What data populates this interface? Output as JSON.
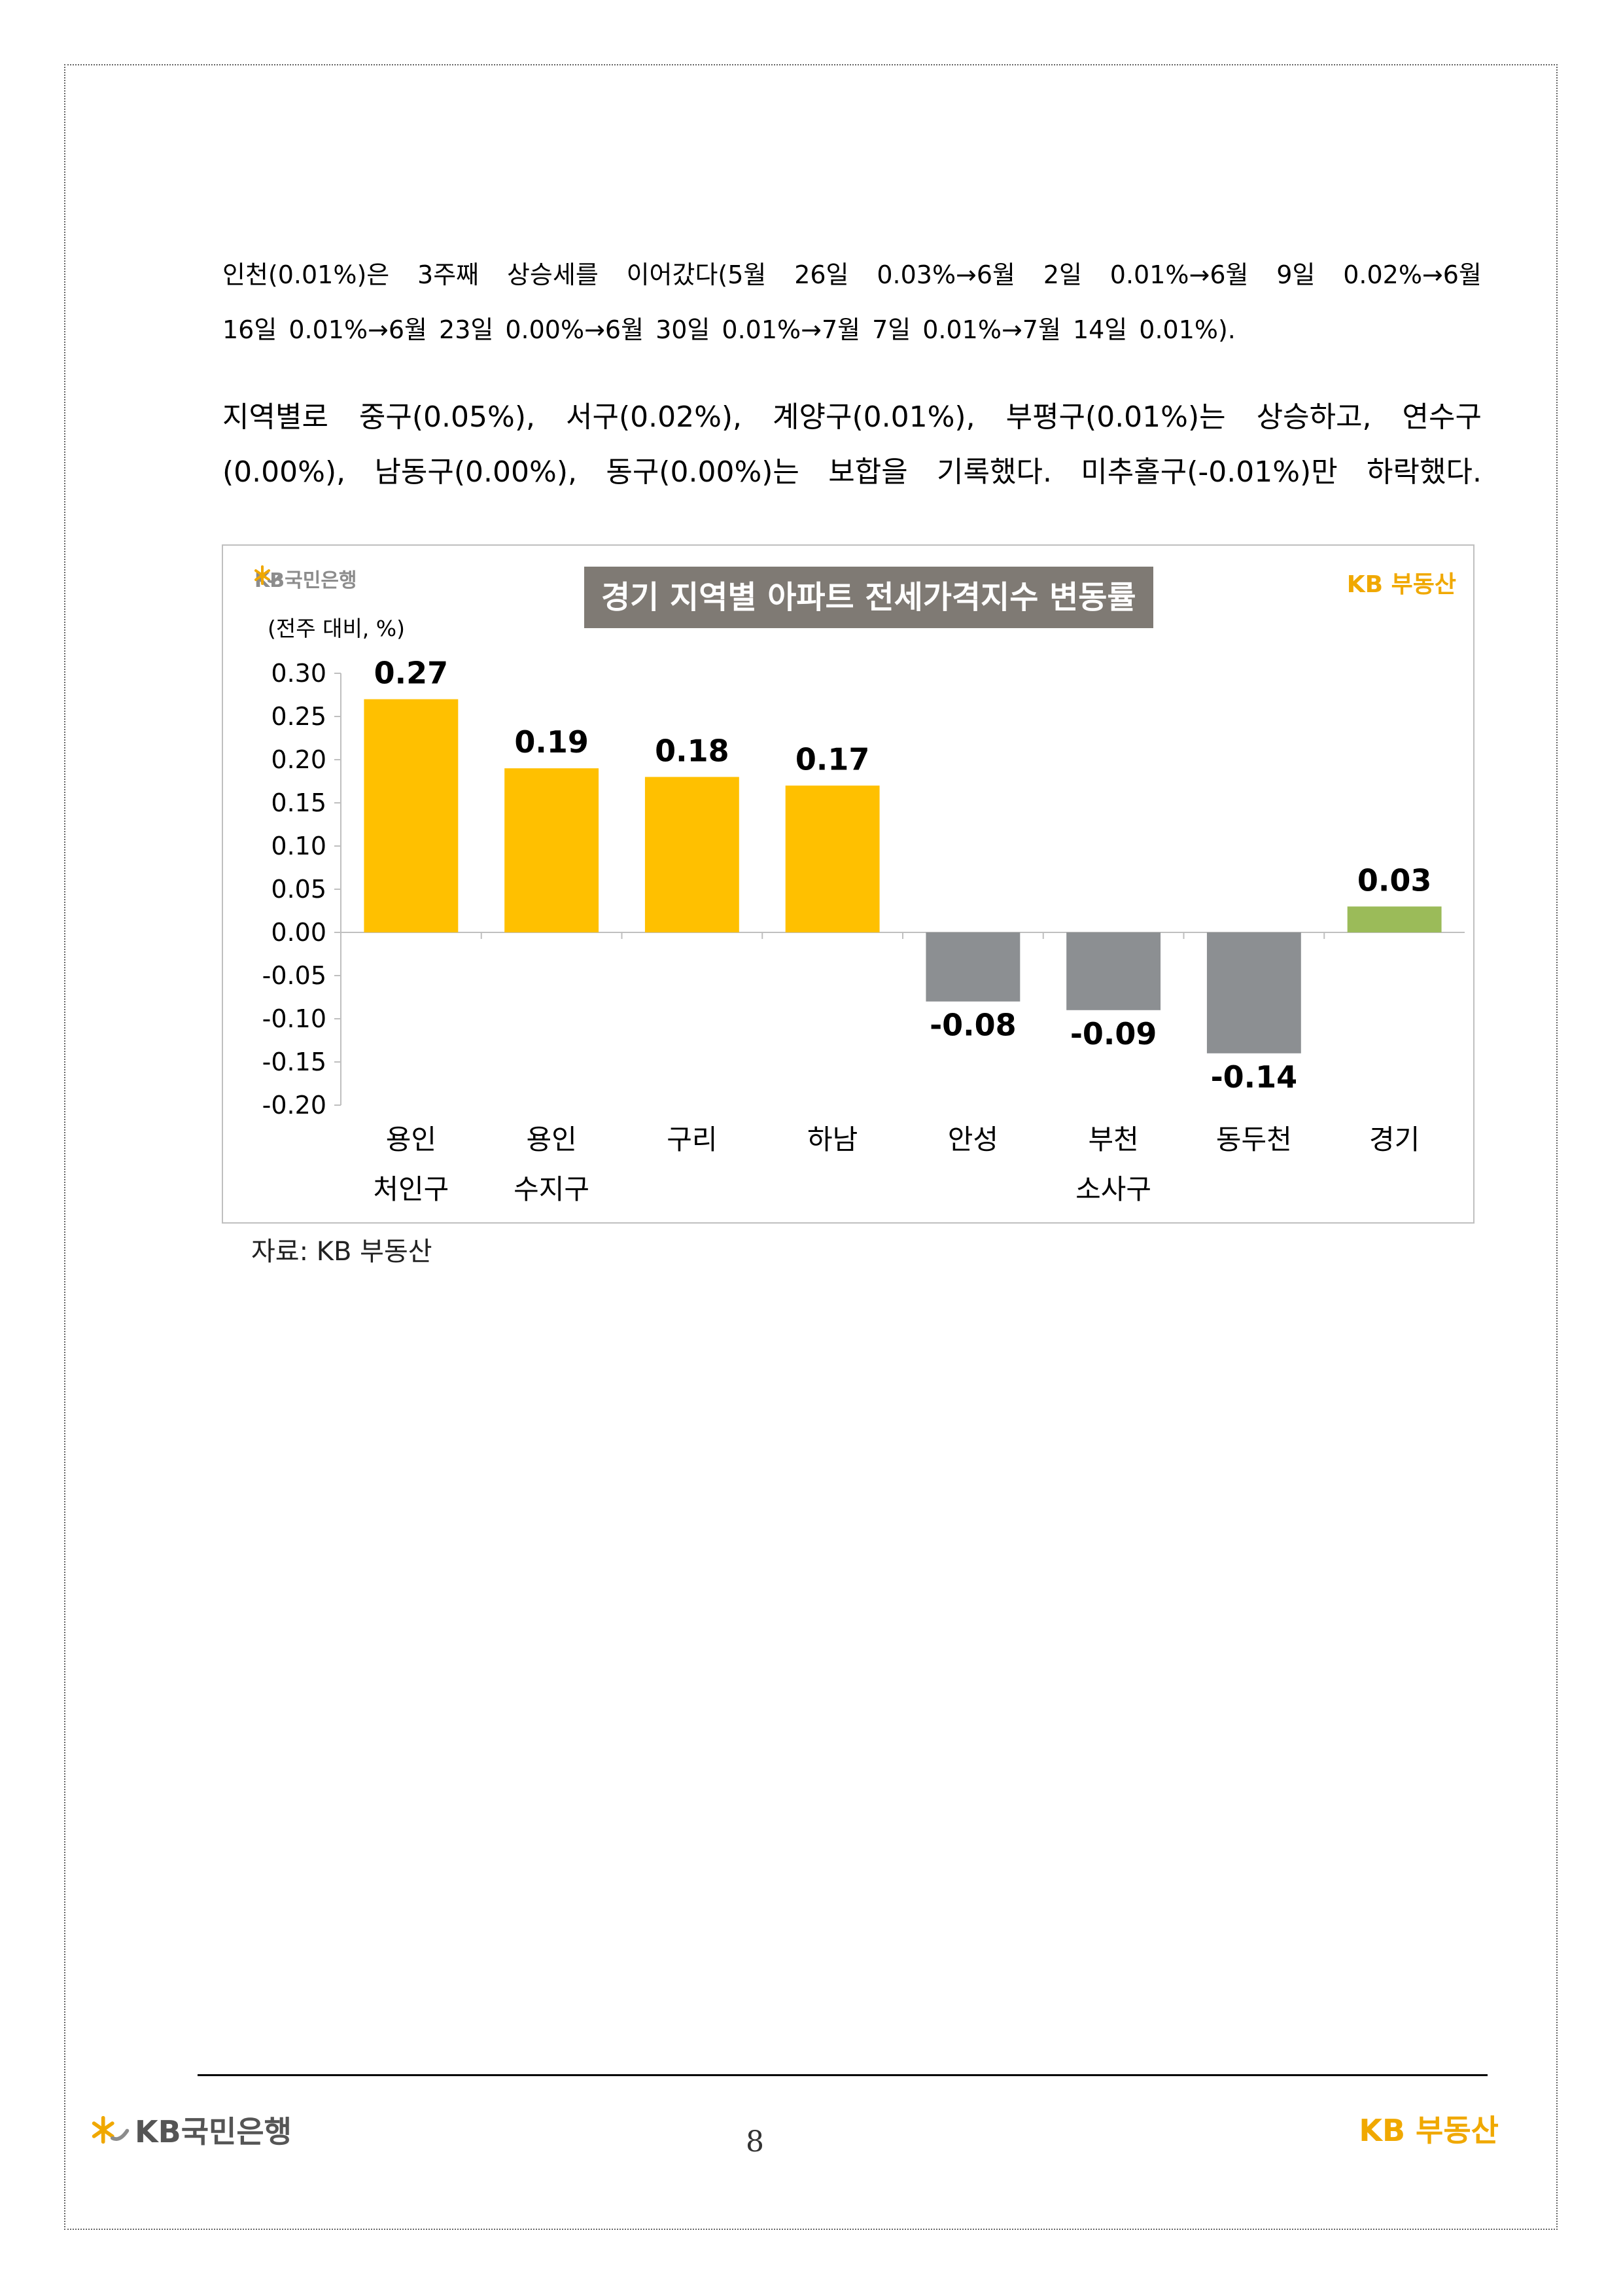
{
  "paragraph1": {
    "line1": [
      "인천(0.01%)은",
      "3주째",
      "상승세를",
      "이어갔다(5월",
      "26일",
      "0.03%→6월",
      "2일",
      "0.01%→6월",
      "9일",
      "0.02%→6월"
    ],
    "line2": [
      "16일",
      "0.01%→6월",
      "23일",
      "0.00%→6월",
      "30일",
      "0.01%→7월",
      "7일",
      "0.01%→7월",
      "14일",
      "0.01%)."
    ]
  },
  "paragraph2": {
    "line1": [
      "지역별로",
      "중구(0.05%),",
      "서구(0.02%),",
      "계양구(0.01%),",
      "부평구(0.01%)는",
      "상승하고,",
      "연수구"
    ],
    "line2": [
      "(0.00%),",
      "남동구(0.00%),",
      "동구(0.00%)는",
      "보합을",
      "기록했다.",
      "미추홀구(-0.01%)만",
      "하락했다."
    ]
  },
  "chart_header": {
    "title": "경기 지역별 아파트 전세가격지수 변동률",
    "logo_left": "KB국민은행",
    "logo_right": "KB 부동산",
    "unit": "(전주 대비, %)"
  },
  "chart_data": {
    "type": "bar",
    "title": "경기 지역별 아파트 전세가격지수 변동률",
    "ylabel": "(전주 대비, %)",
    "xlabel": "",
    "ylim": [
      -0.2,
      0.3
    ],
    "y_ticks": [
      "0.30",
      "0.25",
      "0.20",
      "0.15",
      "0.10",
      "0.05",
      "0.00",
      "-0.05",
      "-0.10",
      "-0.15",
      "-0.20"
    ],
    "grid": false,
    "categories": [
      [
        "용인",
        "처인구"
      ],
      [
        "용인",
        "수지구"
      ],
      [
        "구리"
      ],
      [
        "하남"
      ],
      [
        "안성"
      ],
      [
        "부천",
        "소사구"
      ],
      [
        "동두천"
      ],
      [
        "경기"
      ]
    ],
    "values": [
      0.27,
      0.19,
      0.18,
      0.17,
      -0.08,
      -0.09,
      -0.14,
      0.03
    ],
    "value_labels": [
      "0.27",
      "0.19",
      "0.18",
      "0.17",
      "-0.08",
      "-0.09",
      "-0.14",
      "0.03"
    ],
    "colors": {
      "positive": "#ffc000",
      "negative": "#8c8f92",
      "aggregate": "#9bbb59"
    }
  },
  "source": "자료: KB 부동산",
  "footer": {
    "logo_left": "KB국민은행",
    "logo_right": "KB 부동산",
    "page_number": "8"
  }
}
